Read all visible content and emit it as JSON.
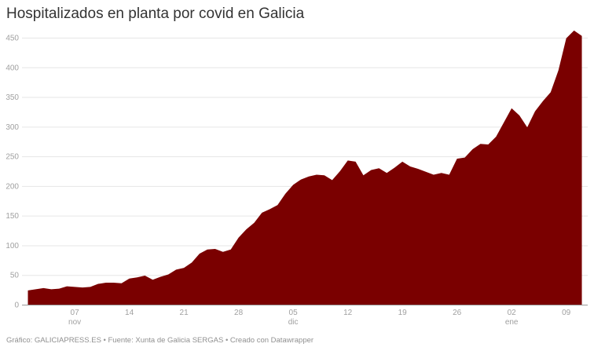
{
  "header": {
    "title": "Hospitalizados en planta por covid en Galicia"
  },
  "footer": {
    "text": "Gráfico: GALICIAPRESS.ES • Fuente: Xunta de Galicia SERGAS • Creado con Datawrapper"
  },
  "colors": {
    "area": "#7a0000",
    "grid": "#e6e6e6",
    "axis_text": "#a0a0a0",
    "baseline": "#9a9a9a"
  },
  "chart_data": {
    "type": "area",
    "title": "Hospitalizados en planta por covid en Galicia",
    "xlabel": "",
    "ylabel": "",
    "ylim": [
      0,
      450
    ],
    "yticks": [
      0,
      50,
      100,
      150,
      200,
      250,
      300,
      350,
      400,
      450
    ],
    "grid": true,
    "legend": "none",
    "x_start": "01 nov",
    "x_end": "11 ene",
    "xticks": [
      {
        "label": "07",
        "sub": "nov",
        "day_index": 6
      },
      {
        "label": "14",
        "sub": "",
        "day_index": 13
      },
      {
        "label": "21",
        "sub": "",
        "day_index": 20
      },
      {
        "label": "28",
        "sub": "",
        "day_index": 27
      },
      {
        "label": "05",
        "sub": "dic",
        "day_index": 34
      },
      {
        "label": "12",
        "sub": "",
        "day_index": 41
      },
      {
        "label": "19",
        "sub": "",
        "day_index": 48
      },
      {
        "label": "26",
        "sub": "",
        "day_index": 55
      },
      {
        "label": "02",
        "sub": "ene",
        "day_index": 62
      },
      {
        "label": "09",
        "sub": "",
        "day_index": 69
      }
    ],
    "series": [
      {
        "name": "Hospitalizados en planta",
        "values": [
          24,
          26,
          28,
          26,
          27,
          31,
          30,
          29,
          30,
          35,
          37,
          37,
          36,
          44,
          46,
          49,
          42,
          47,
          51,
          59,
          62,
          71,
          86,
          93,
          94,
          89,
          93,
          113,
          127,
          138,
          155,
          161,
          168,
          187,
          202,
          211,
          216,
          219,
          218,
          210,
          225,
          243,
          241,
          218,
          227,
          230,
          222,
          231,
          241,
          233,
          229,
          224,
          219,
          222,
          219,
          246,
          248,
          262,
          271,
          270,
          283,
          307,
          331,
          319,
          299,
          326,
          343,
          358,
          395,
          449,
          462,
          453
        ]
      }
    ]
  }
}
